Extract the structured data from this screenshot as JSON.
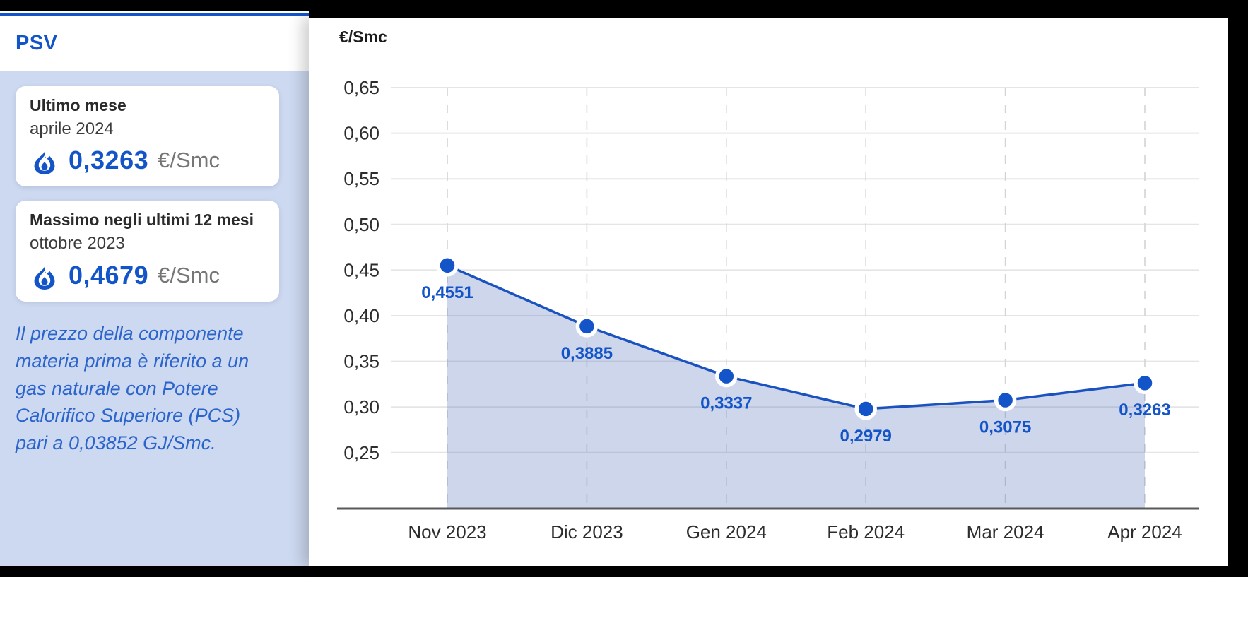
{
  "colors": {
    "accent": "#1355C8",
    "line": "#1A52C0",
    "area_fill": "rgba(76,108,178,0.28)",
    "sidebar_bg": "#CDD9F0",
    "note_blue": "#2B64CB",
    "grid": "#E5E5E5",
    "grid_dash": "#D4D4D4",
    "axis": "#58595B",
    "tick_text": "#2D2D2D"
  },
  "sidebar": {
    "title": "PSV",
    "cards": [
      {
        "title": "Ultimo mese",
        "period": "aprile 2024",
        "value": "0,3263",
        "unit": "€/Smc"
      },
      {
        "title": "Massimo negli ultimi 12 mesi",
        "period": "ottobre 2023",
        "value": "0,4679",
        "unit": "€/Smc"
      }
    ],
    "note": "Il prezzo della componente\nmateria prima è riferito a un\ngas naturale con Potere\nCalorifico Superiore (PCS)\npari a 0,03852 GJ/Smc."
  },
  "chart_data": {
    "type": "area",
    "title": "€/Smc",
    "unit_label": "€/Smc",
    "categories": [
      "Nov 2023",
      "Dic 2023",
      "Gen 2024",
      "Feb 2024",
      "Mar 2024",
      "Apr 2024"
    ],
    "values": [
      0.4551,
      0.3885,
      0.3337,
      0.2979,
      0.3075,
      0.3263
    ],
    "value_labels": [
      "0,4551",
      "0,3885",
      "0,3337",
      "0,2979",
      "0,3075",
      "0,3263"
    ],
    "y_ticks": {
      "labels": [
        "0,65",
        "0,60",
        "0,55",
        "0,50",
        "0,45",
        "0,40",
        "0,35",
        "0,30",
        "0,25"
      ],
      "values": [
        0.65,
        0.6,
        0.55,
        0.5,
        0.45,
        0.4,
        0.35,
        0.3,
        0.25
      ]
    },
    "ylim": [
      0.19,
      0.65
    ],
    "grid": true,
    "legend": false
  }
}
